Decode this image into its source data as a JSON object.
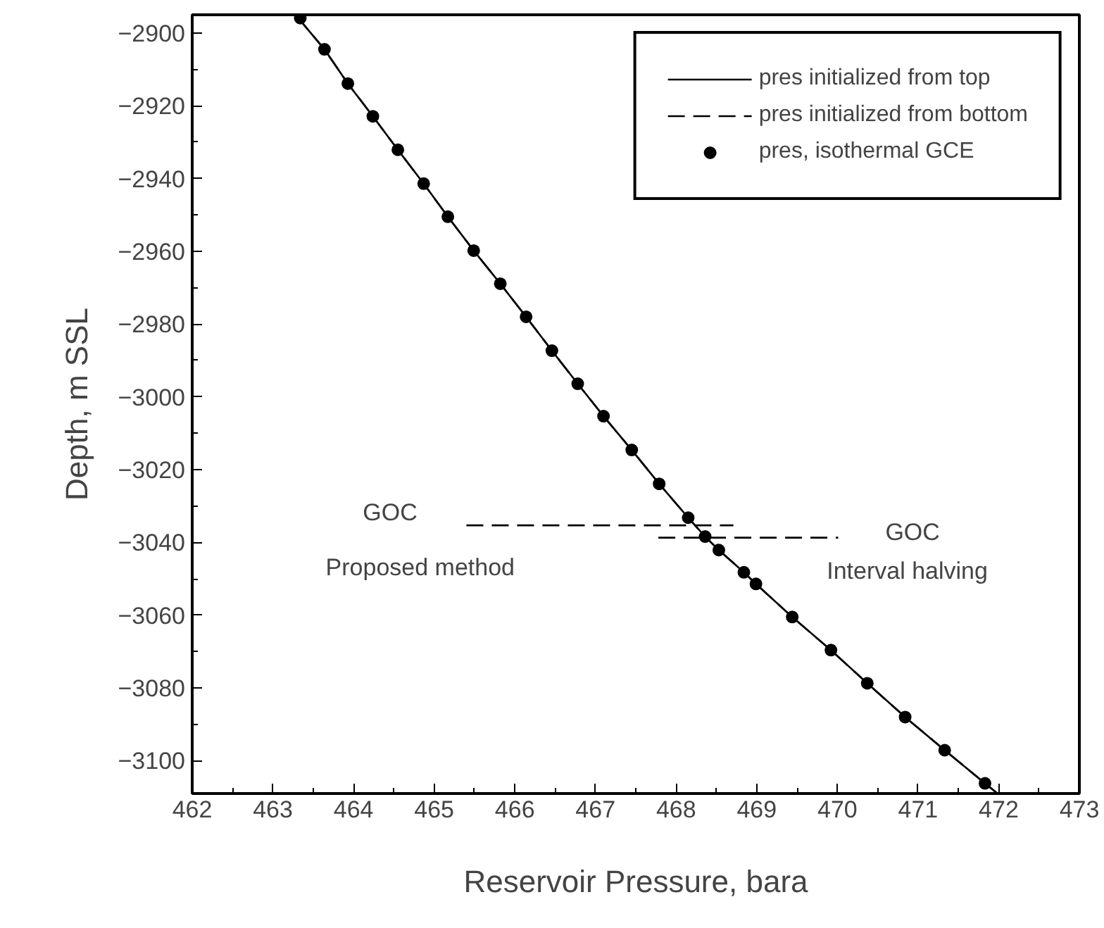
{
  "chart_data": {
    "type": "line",
    "xlabel": "Reservoir Pressure, bara",
    "ylabel": "Depth, m SSL",
    "xlim": [
      462,
      473
    ],
    "ylim": [
      -3109,
      -2895
    ],
    "xticks": [
      462,
      463,
      464,
      465,
      466,
      467,
      468,
      469,
      470,
      471,
      472,
      473
    ],
    "yticks": [
      -2900,
      -2920,
      -2940,
      -2960,
      -2980,
      -3000,
      -3020,
      -3040,
      -3060,
      -3080,
      -3100
    ],
    "grid": false,
    "legend": "top right",
    "series": [
      {
        "name": "pres initialized from top",
        "line_style": "solid",
        "color": "#000000",
        "x": [
          463.3,
          463.64,
          463.93,
          464.24,
          464.55,
          464.87,
          465.17,
          465.49,
          465.82,
          466.14,
          466.46,
          466.78,
          467.1,
          467.45,
          467.79,
          468.15,
          468.36,
          468.53,
          468.84,
          468.99,
          469.44,
          469.92,
          470.37,
          470.84,
          471.33,
          471.83,
          471.98
        ],
        "values": [
          -2895.5,
          -2904.5,
          -2913.9,
          -2922.9,
          -2932.1,
          -2941.4,
          -2950.5,
          -2959.8,
          -2968.9,
          -2978.0,
          -2987.3,
          -2996.4,
          -3005.3,
          -3014.6,
          -3023.9,
          -3033.2,
          -3038.4,
          -3042.1,
          -3048.2,
          -3051.4,
          -3060.5,
          -3069.6,
          -3078.7,
          -3088.0,
          -3097.1,
          -3106.2,
          -3108.9
        ]
      },
      {
        "name": "pres initialized from bottom",
        "line_style": "dashed",
        "color": "#000000",
        "x": [
          463.3,
          463.64,
          463.93,
          464.24,
          464.55,
          464.87,
          465.17,
          465.49,
          465.82,
          466.14,
          466.46,
          466.78,
          467.1,
          467.45,
          467.79,
          468.15,
          468.36,
          468.53,
          468.84,
          468.99,
          469.44,
          469.92,
          470.37,
          470.84,
          471.33,
          471.83,
          471.98
        ],
        "values": [
          -2895.5,
          -2904.5,
          -2913.9,
          -2922.9,
          -2932.1,
          -2941.4,
          -2950.5,
          -2959.8,
          -2968.9,
          -2978.0,
          -2987.3,
          -2996.4,
          -3005.3,
          -3014.6,
          -3023.9,
          -3033.2,
          -3038.4,
          -3042.1,
          -3048.2,
          -3051.4,
          -3060.5,
          -3069.6,
          -3078.7,
          -3088.0,
          -3097.1,
          -3106.2,
          -3108.9
        ]
      },
      {
        "name": "pres, isothermal GCE",
        "type": "scatter",
        "marker": "circle",
        "color": "#000000",
        "x": [
          463.34,
          463.64,
          463.93,
          464.24,
          464.55,
          464.87,
          465.17,
          465.49,
          465.82,
          466.14,
          466.46,
          466.78,
          467.1,
          467.45,
          467.79,
          468.15,
          468.36,
          468.53,
          468.84,
          468.99,
          469.44,
          469.92,
          470.37,
          470.84,
          471.33,
          471.83
        ],
        "values": [
          -2895.9,
          -2904.5,
          -2913.9,
          -2922.9,
          -2932.1,
          -2941.4,
          -2950.5,
          -2959.8,
          -2968.9,
          -2978.0,
          -2987.3,
          -2996.4,
          -3005.3,
          -3014.6,
          -3023.9,
          -3033.2,
          -3038.4,
          -3042.1,
          -3048.2,
          -3051.4,
          -3060.5,
          -3069.6,
          -3078.7,
          -3088.0,
          -3097.1,
          -3106.2
        ]
      },
      {
        "line_style": "dashed",
        "color": "#000000",
        "x": [
          465.4,
          468.71
        ],
        "values": [
          -3035.3,
          -3035.3
        ]
      },
      {
        "line_style": "dashed",
        "color": "#000000",
        "x": [
          467.78,
          470.01
        ],
        "values": [
          -3038.7,
          -3038.7
        ]
      }
    ],
    "annotations": [
      "GOC",
      "Proposed method",
      "GOC",
      "Interval halving"
    ]
  }
}
